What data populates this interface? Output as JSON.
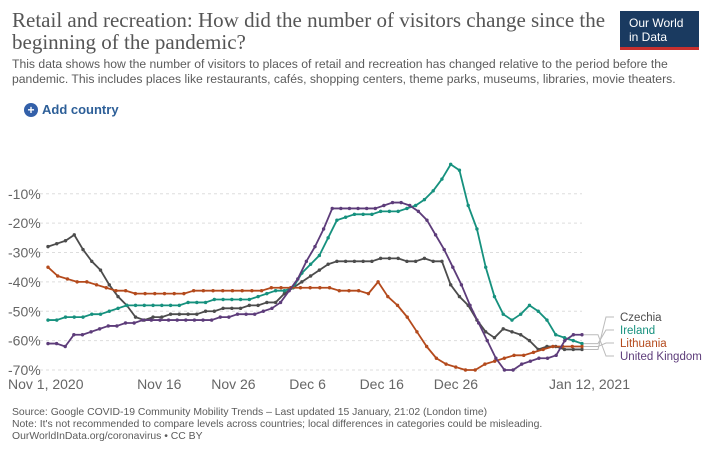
{
  "header": {
    "title": "Retail and recreation: How did the number of visitors change since the beginning of the pandemic?",
    "subtitle": "This data shows how the number of visitors to places of retail and recreation has changed relative to the period before the pandemic. This includes places like restaurants, cafés, shopping centers, theme parks, museums, libraries, movie theaters.",
    "logo_line1": "Our World",
    "logo_line2": "in Data"
  },
  "controls": {
    "add_country_label": "Add country",
    "add_icon": "plus-circle-icon"
  },
  "footer": {
    "source": "Source: Google COVID-19 Community Mobility Trends – Last updated 15 January, 21:02 (London time)",
    "note": "Note: It's not recommended to compare levels across countries; local differences in categories could be misleading.",
    "url": "OurWorldInData.org/coronavirus • CC BY"
  },
  "colors": {
    "Czechia": "#4c4c4c",
    "Ireland": "#16917e",
    "Lithuania": "#b44a1c",
    "United Kingdom": "#5d3c7a",
    "gridline": "#dddddd"
  },
  "chart_data": {
    "type": "line",
    "title": "Retail and recreation: How did the number of visitors change since the beginning of the pandemic?",
    "x_ticks": [
      "Nov 1, 2020",
      "Nov 16",
      "Nov 26",
      "Dec 6",
      "Dec 16",
      "Dec 26",
      "Jan 12, 2021"
    ],
    "x_tick_days": [
      0,
      15,
      25,
      35,
      45,
      55,
      72
    ],
    "y_ticks": [
      "-10%",
      "-20%",
      "-30%",
      "-40%",
      "-50%",
      "-60%",
      "-70%"
    ],
    "y_tick_values": [
      -10,
      -20,
      -30,
      -40,
      -50,
      -60,
      -70
    ],
    "ylim": [
      -70,
      10
    ],
    "xlim": [
      0,
      72
    ],
    "grid": "horizontal dashed",
    "legend": "right end of lines",
    "series": [
      {
        "name": "Czechia",
        "values": [
          -28,
          -27,
          -26,
          -24,
          -29,
          -33,
          -36,
          -41,
          -45,
          -48,
          -52,
          -53,
          -52,
          -52,
          -51,
          -51,
          -51,
          -51,
          -50,
          -50,
          -49,
          -49,
          -49,
          -48,
          -48,
          -47,
          -47,
          -44,
          -42,
          -40,
          -38,
          -36,
          -34,
          -33,
          -33,
          -33,
          -33,
          -33,
          -32,
          -32,
          -32,
          -33,
          -33,
          -32,
          -33,
          -33,
          -41,
          -45,
          -48,
          -53,
          -57,
          -59,
          -56,
          -57,
          -58,
          -60,
          -63,
          -62,
          -62,
          -63,
          -63,
          -63
        ]
      },
      {
        "name": "Ireland",
        "values": [
          -53,
          -53,
          -52,
          -52,
          -52,
          -51,
          -51,
          -50,
          -49,
          -48,
          -48,
          -48,
          -48,
          -48,
          -48,
          -48,
          -47,
          -47,
          -47,
          -46,
          -46,
          -46,
          -46,
          -46,
          -45,
          -44,
          -43,
          -43,
          -42,
          -37,
          -34,
          -31,
          -25,
          -19,
          -18,
          -17,
          -17,
          -17,
          -16,
          -16,
          -16,
          -15,
          -14,
          -12,
          -9,
          -5,
          0,
          -2,
          -14,
          -22,
          -35,
          -45,
          -51,
          -53,
          -51,
          -48,
          -50,
          -53,
          -58,
          -59,
          -60,
          -61
        ]
      },
      {
        "name": "Lithuania",
        "values": [
          -35,
          -38,
          -39,
          -40,
          -40,
          -41,
          -42,
          -43,
          -43,
          -44,
          -44,
          -44,
          -44,
          -44,
          -44,
          -43,
          -43,
          -43,
          -43,
          -43,
          -43,
          -43,
          -43,
          -42,
          -42,
          -42,
          -42,
          -42,
          -42,
          -42,
          -43,
          -43,
          -43,
          -44,
          -40,
          -45,
          -48,
          -52,
          -57,
          -62,
          -66,
          -68,
          -69,
          -70,
          -70,
          -68,
          -67,
          -66,
          -65,
          -65,
          -64,
          -63,
          -62,
          -62,
          -62,
          -62
        ]
      },
      {
        "name": "United Kingdom",
        "values": [
          -61,
          -61,
          -62,
          -58,
          -58,
          -57,
          -56,
          -55,
          -55,
          -54,
          -54,
          -53,
          -53,
          -53,
          -53,
          -53,
          -53,
          -53,
          -53,
          -53,
          -52,
          -52,
          -51,
          -51,
          -51,
          -50,
          -49,
          -47,
          -43,
          -39,
          -33,
          -28,
          -22,
          -15,
          -15,
          -15,
          -15,
          -15,
          -15,
          -14,
          -13,
          -13,
          -14,
          -16,
          -19,
          -24,
          -29,
          -35,
          -41,
          -48,
          -54,
          -60,
          -66,
          -70,
          -70,
          -68,
          -67,
          -66,
          -66,
          -65,
          -60,
          -58,
          -58
        ]
      }
    ]
  }
}
